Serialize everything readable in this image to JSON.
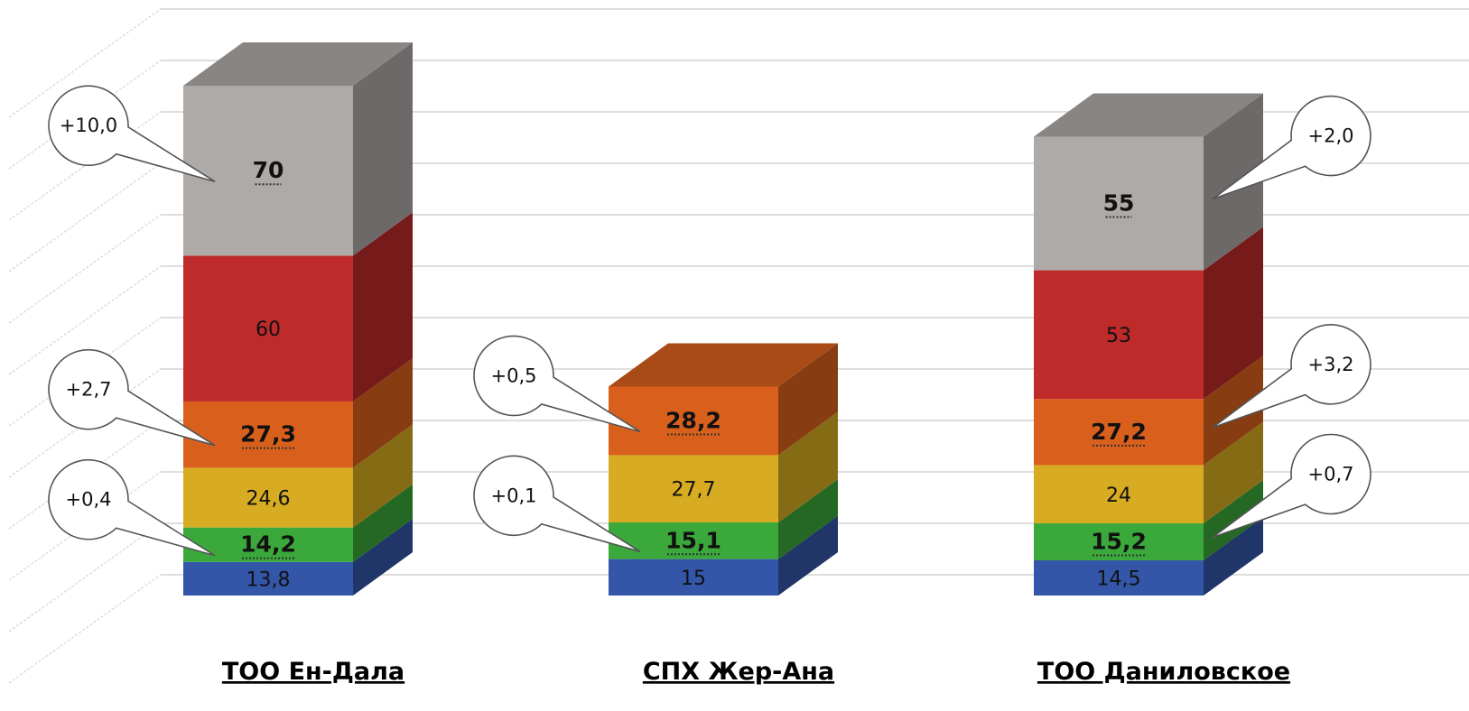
{
  "chart_data": {
    "type": "bar",
    "stacked": true,
    "three_d": true,
    "title": "",
    "categories": [
      "ТОО Ен-Дала",
      "СПХ Жер-Ана",
      "ТОО Даниловское"
    ],
    "stacks": [
      {
        "category": "ТОО Ен-Дала",
        "segments": [
          {
            "value": 13.8,
            "label": "13,8",
            "color": "#3356a8",
            "emphasis": false
          },
          {
            "value": 14.2,
            "label": "14,2",
            "color": "#3aa83a",
            "emphasis": true
          },
          {
            "value": 24.6,
            "label": "24,6",
            "color": "#d8ac22",
            "emphasis": false
          },
          {
            "value": 27.3,
            "label": "27,3",
            "color": "#d9601c",
            "emphasis": true
          },
          {
            "value": 60,
            "label": "60",
            "color": "#bf2a2a",
            "emphasis": false
          },
          {
            "value": 70,
            "label": "70",
            "color": "#aeaaa8",
            "emphasis": true
          }
        ]
      },
      {
        "category": "СПХ Жер-Ана",
        "segments": [
          {
            "value": 15,
            "label": "15",
            "color": "#3356a8",
            "emphasis": false
          },
          {
            "value": 15.1,
            "label": "15,1",
            "color": "#3aa83a",
            "emphasis": true
          },
          {
            "value": 27.7,
            "label": "27,7",
            "color": "#d8ac22",
            "emphasis": false
          },
          {
            "value": 28.2,
            "label": "28,2",
            "color": "#d9601c",
            "emphasis": true
          }
        ]
      },
      {
        "category": "ТОО Даниловское",
        "segments": [
          {
            "value": 14.5,
            "label": "14,5",
            "color": "#3356a8",
            "emphasis": false
          },
          {
            "value": 15.2,
            "label": "15,2",
            "color": "#3aa83a",
            "emphasis": true
          },
          {
            "value": 24,
            "label": "24",
            "color": "#d8ac22",
            "emphasis": false
          },
          {
            "value": 27.2,
            "label": "27,2",
            "color": "#d9601c",
            "emphasis": true
          },
          {
            "value": 53,
            "label": "53",
            "color": "#bf2a2a",
            "emphasis": false
          },
          {
            "value": 55,
            "label": "55",
            "color": "#aeaaa8",
            "emphasis": true
          }
        ]
      }
    ],
    "annotations": [
      {
        "category": "ТОО Ен-Дала",
        "segment_label": "70",
        "text": "+10,0",
        "side": "left"
      },
      {
        "category": "ТОО Ен-Дала",
        "segment_label": "27,3",
        "text": "+2,7",
        "side": "left"
      },
      {
        "category": "ТОО Ен-Дала",
        "segment_label": "14,2",
        "text": "+0,4",
        "side": "left"
      },
      {
        "category": "СПХ Жер-Ана",
        "segment_label": "28,2",
        "text": "+0,5",
        "side": "left"
      },
      {
        "category": "СПХ Жер-Ана",
        "segment_label": "15,1",
        "text": "+0,1",
        "side": "left"
      },
      {
        "category": "ТОО Даниловское",
        "segment_label": "55",
        "text": "+2,0",
        "side": "right"
      },
      {
        "category": "ТОО Даниловское",
        "segment_label": "27,2",
        "text": "+3,2",
        "side": "right"
      },
      {
        "category": "ТОО Даниловское",
        "segment_label": "15,2",
        "text": "+0,7",
        "side": "right"
      }
    ],
    "grid": true,
    "legend": "none"
  }
}
